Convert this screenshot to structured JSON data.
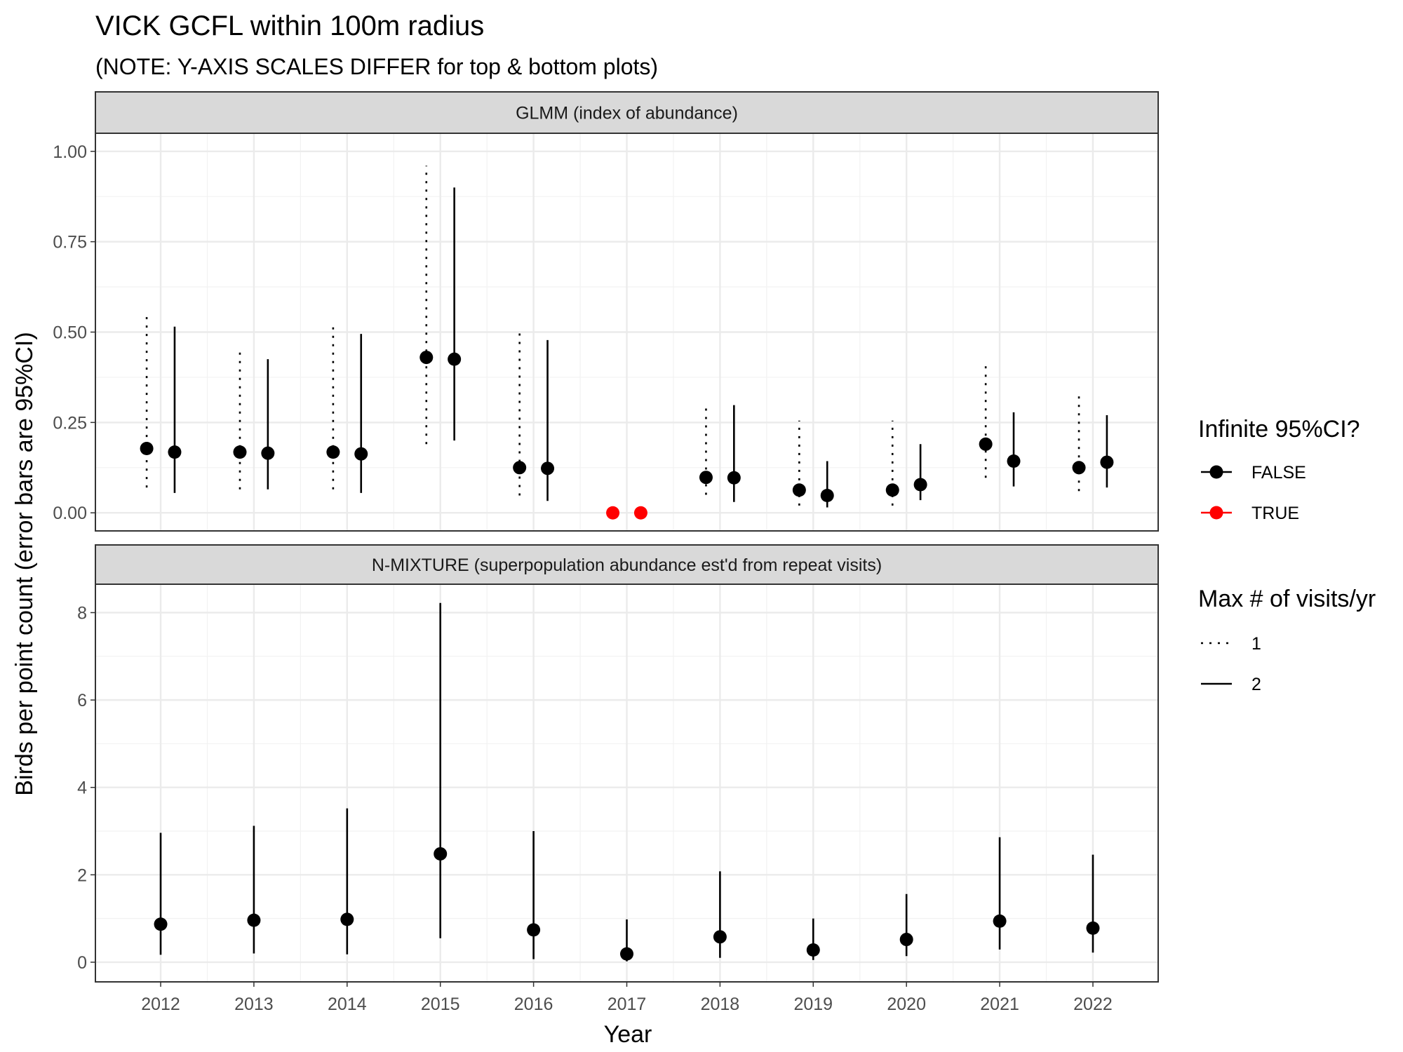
{
  "chart_data": {
    "type": "scatter",
    "title": "VICK GCFL within 100m radius",
    "subtitle": "(NOTE: Y-AXIS SCALES DIFFER for top & bottom plots)",
    "xlabel": "Year",
    "ylabel": "Birds per point count (error bars are 95%CI)",
    "x_ticks": [
      "2012",
      "2013",
      "2014",
      "2015",
      "2016",
      "2017",
      "2018",
      "2019",
      "2020",
      "2021",
      "2022"
    ],
    "grid": true,
    "legend_position": "right",
    "legends": {
      "infinite_ci": {
        "title": "Infinite 95%CI?",
        "entries": [
          {
            "label": "FALSE",
            "color": "#000000"
          },
          {
            "label": "TRUE",
            "color": "#ff0000"
          }
        ]
      },
      "max_visits": {
        "title": "Max # of visits/yr",
        "entries": [
          {
            "label": "1",
            "linestyle": "dotted"
          },
          {
            "label": "2",
            "linestyle": "solid"
          }
        ]
      }
    },
    "panels": [
      {
        "strip_label": "GLMM (index of abundance)",
        "ylim": [
          -0.05,
          1.05
        ],
        "y_ticks": [
          "0.00",
          "0.25",
          "0.50",
          "0.75",
          "1.00"
        ],
        "y_tick_values": [
          0,
          0.25,
          0.5,
          0.75,
          1.0
        ],
        "series": [
          {
            "max_visits": "1",
            "x": [
              2012,
              2013,
              2014,
              2015,
              2016,
              2017,
              2018,
              2019,
              2020,
              2021,
              2022
            ],
            "y": [
              0.178,
              0.168,
              0.168,
              0.43,
              0.125,
              0.0,
              0.098,
              0.063,
              0.063,
              0.19,
              0.125
            ],
            "lower": [
              0.07,
              0.065,
              0.065,
              0.19,
              0.048,
              null,
              0.05,
              0.02,
              0.02,
              0.097,
              0.06
            ],
            "upper": [
              0.55,
              0.45,
              0.52,
              0.96,
              0.505,
              null,
              0.305,
              0.255,
              0.255,
              0.42,
              0.335
            ],
            "infinite_ci": [
              false,
              false,
              false,
              false,
              false,
              true,
              false,
              false,
              false,
              false,
              false
            ]
          },
          {
            "max_visits": "2",
            "x": [
              2012,
              2013,
              2014,
              2015,
              2016,
              2017,
              2018,
              2019,
              2020,
              2021,
              2022
            ],
            "y": [
              0.168,
              0.165,
              0.163,
              0.425,
              0.123,
              0.0,
              0.097,
              0.048,
              0.078,
              0.143,
              0.14
            ],
            "lower": [
              0.055,
              0.065,
              0.055,
              0.2,
              0.033,
              null,
              0.03,
              0.015,
              0.035,
              0.073,
              0.07
            ],
            "upper": [
              0.515,
              0.425,
              0.495,
              0.9,
              0.478,
              null,
              0.298,
              0.143,
              0.19,
              0.278,
              0.27
            ],
            "infinite_ci": [
              false,
              false,
              false,
              false,
              false,
              true,
              false,
              false,
              false,
              false,
              false
            ]
          }
        ]
      },
      {
        "strip_label": "N-MIXTURE (superpopulation abundance est'd from repeat visits)",
        "ylim": [
          -0.45,
          8.65
        ],
        "y_ticks": [
          "0",
          "2",
          "4",
          "6",
          "8"
        ],
        "y_tick_values": [
          0,
          2,
          4,
          6,
          8
        ],
        "series": [
          {
            "max_visits": "2",
            "x": [
              2012,
              2013,
              2014,
              2015,
              2016,
              2017,
              2018,
              2019,
              2020,
              2021,
              2022
            ],
            "y": [
              0.87,
              0.96,
              0.98,
              2.48,
              0.74,
              0.19,
              0.58,
              0.28,
              0.52,
              0.94,
              0.78
            ],
            "lower": [
              0.17,
              0.2,
              0.18,
              0.55,
              0.07,
              0.02,
              0.1,
              0.05,
              0.14,
              0.29,
              0.22
            ],
            "upper": [
              2.96,
              3.12,
              3.52,
              8.22,
              3.0,
              0.98,
              2.08,
              1.0,
              1.56,
              2.86,
              2.46
            ],
            "infinite_ci": [
              false,
              false,
              false,
              false,
              false,
              false,
              false,
              false,
              false,
              false,
              false
            ]
          }
        ]
      }
    ]
  }
}
